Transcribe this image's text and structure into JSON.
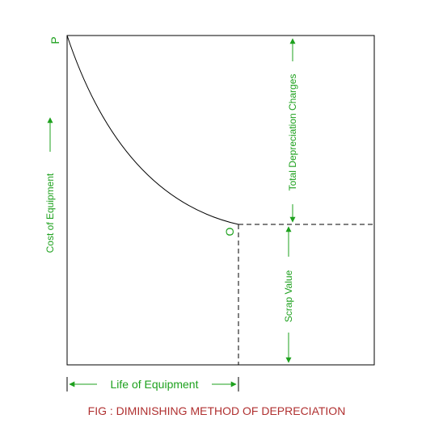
{
  "labels": {
    "point_p": "P",
    "point_o": "O",
    "y_axis": "Cost of Equipment",
    "x_axis": "Life of Equipment",
    "total_depreciation": "Total Depreciation Charges",
    "scrap_value": "Scrap Value",
    "caption": "FIG : DIMINISHING METHOD OF DEPRECIATION"
  },
  "colors": {
    "annotation": "#1ea11e",
    "caption": "#b03030",
    "line": "#000000"
  }
}
